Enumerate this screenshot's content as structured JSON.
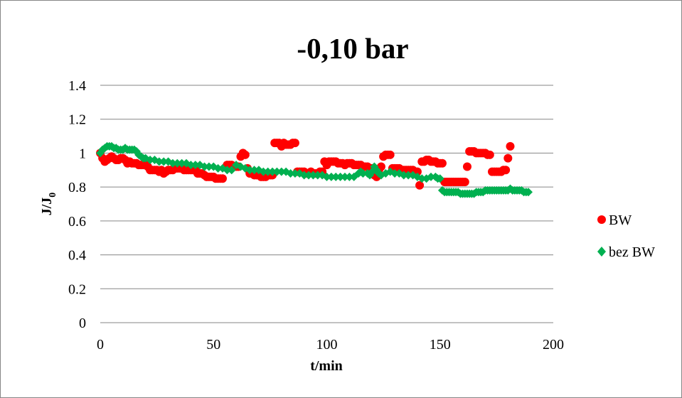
{
  "chart_data": {
    "type": "scatter",
    "title": "-0,10 bar",
    "xlabel": "t/min",
    "ylabel": {
      "main": "J/J",
      "sub": "0"
    },
    "xlim": [
      0,
      200
    ],
    "ylim": [
      0,
      1.4
    ],
    "x_ticks": [
      0,
      50,
      100,
      150,
      200
    ],
    "y_ticks": [
      0,
      0.2,
      0.4,
      0.6,
      0.8,
      1,
      1.2,
      1.4
    ],
    "x_tick_labels": [
      "0",
      "50",
      "100",
      "150",
      "200"
    ],
    "y_tick_labels": [
      "0",
      "0.2",
      "0.4",
      "0.6",
      "0.8",
      "1",
      "1.2",
      "1.4"
    ],
    "grid": "horizontal",
    "legend_position": "right",
    "series": [
      {
        "name": "BW",
        "marker": "circle",
        "color": "#FF0000",
        "points": [
          [
            0,
            1.0
          ],
          [
            1,
            0.97
          ],
          [
            2,
            0.95
          ],
          [
            3,
            0.96
          ],
          [
            4,
            0.97
          ],
          [
            5,
            0.98
          ],
          [
            6,
            0.97
          ],
          [
            7,
            0.96
          ],
          [
            8,
            0.96
          ],
          [
            9,
            0.97
          ],
          [
            10,
            0.97
          ],
          [
            11,
            0.96
          ],
          [
            12,
            0.94
          ],
          [
            13,
            0.95
          ],
          [
            14,
            0.94
          ],
          [
            15,
            0.94
          ],
          [
            16,
            0.94
          ],
          [
            17,
            0.93
          ],
          [
            18,
            0.93
          ],
          [
            19,
            0.93
          ],
          [
            20,
            0.93
          ],
          [
            21,
            0.92
          ],
          [
            22,
            0.9
          ],
          [
            23,
            0.9
          ],
          [
            24,
            0.9
          ],
          [
            25,
            0.9
          ],
          [
            26,
            0.89
          ],
          [
            27,
            0.9
          ],
          [
            28,
            0.88
          ],
          [
            29,
            0.89
          ],
          [
            30,
            0.9
          ],
          [
            31,
            0.9
          ],
          [
            32,
            0.9
          ],
          [
            33,
            0.91
          ],
          [
            34,
            0.91
          ],
          [
            35,
            0.91
          ],
          [
            36,
            0.91
          ],
          [
            37,
            0.9
          ],
          [
            38,
            0.9
          ],
          [
            39,
            0.9
          ],
          [
            40,
            0.9
          ],
          [
            41,
            0.9
          ],
          [
            42,
            0.9
          ],
          [
            43,
            0.88
          ],
          [
            44,
            0.88
          ],
          [
            45,
            0.88
          ],
          [
            46,
            0.87
          ],
          [
            47,
            0.86
          ],
          [
            48,
            0.86
          ],
          [
            49,
            0.86
          ],
          [
            50,
            0.86
          ],
          [
            51,
            0.85
          ],
          [
            52,
            0.85
          ],
          [
            53,
            0.85
          ],
          [
            54,
            0.85
          ],
          [
            56,
            0.93
          ],
          [
            57,
            0.93
          ],
          [
            58,
            0.93
          ],
          [
            59,
            0.92
          ],
          [
            60,
            0.92
          ],
          [
            61,
            0.92
          ],
          [
            62,
            0.98
          ],
          [
            63,
            1.0
          ],
          [
            64,
            0.99
          ],
          [
            65,
            0.91
          ],
          [
            66,
            0.88
          ],
          [
            67,
            0.88
          ],
          [
            68,
            0.87
          ],
          [
            69,
            0.87
          ],
          [
            70,
            0.87
          ],
          [
            71,
            0.86
          ],
          [
            72,
            0.86
          ],
          [
            73,
            0.86
          ],
          [
            74,
            0.87
          ],
          [
            75,
            0.87
          ],
          [
            76,
            0.87
          ],
          [
            77,
            1.06
          ],
          [
            78,
            1.06
          ],
          [
            79,
            1.06
          ],
          [
            80,
            1.04
          ],
          [
            81,
            1.06
          ],
          [
            82,
            1.05
          ],
          [
            83,
            1.05
          ],
          [
            84,
            1.05
          ],
          [
            85,
            1.06
          ],
          [
            86,
            1.06
          ],
          [
            87,
            0.89
          ],
          [
            88,
            0.89
          ],
          [
            89,
            0.89
          ],
          [
            90,
            0.89
          ],
          [
            91,
            0.88
          ],
          [
            92,
            0.88
          ],
          [
            93,
            0.89
          ],
          [
            94,
            0.88
          ],
          [
            95,
            0.88
          ],
          [
            96,
            0.88
          ],
          [
            97,
            0.89
          ],
          [
            98,
            0.89
          ],
          [
            99,
            0.95
          ],
          [
            100,
            0.93
          ],
          [
            101,
            0.95
          ],
          [
            102,
            0.95
          ],
          [
            103,
            0.95
          ],
          [
            104,
            0.95
          ],
          [
            105,
            0.94
          ],
          [
            106,
            0.94
          ],
          [
            107,
            0.94
          ],
          [
            108,
            0.93
          ],
          [
            109,
            0.94
          ],
          [
            110,
            0.94
          ],
          [
            111,
            0.94
          ],
          [
            112,
            0.93
          ],
          [
            113,
            0.93
          ],
          [
            114,
            0.93
          ],
          [
            115,
            0.93
          ],
          [
            116,
            0.92
          ],
          [
            117,
            0.92
          ],
          [
            118,
            0.92
          ],
          [
            119,
            0.91
          ],
          [
            120,
            0.91
          ],
          [
            121,
            0.87
          ],
          [
            122,
            0.86
          ],
          [
            123,
            0.9
          ],
          [
            124,
            0.92
          ],
          [
            125,
            0.98
          ],
          [
            126,
            0.99
          ],
          [
            127,
            0.99
          ],
          [
            128,
            0.99
          ],
          [
            129,
            0.91
          ],
          [
            130,
            0.91
          ],
          [
            131,
            0.91
          ],
          [
            132,
            0.91
          ],
          [
            133,
            0.9
          ],
          [
            134,
            0.9
          ],
          [
            135,
            0.9
          ],
          [
            136,
            0.9
          ],
          [
            137,
            0.9
          ],
          [
            138,
            0.9
          ],
          [
            139,
            0.89
          ],
          [
            140,
            0.89
          ],
          [
            141,
            0.81
          ],
          [
            142,
            0.95
          ],
          [
            143,
            0.95
          ],
          [
            144,
            0.96
          ],
          [
            145,
            0.96
          ],
          [
            146,
            0.95
          ],
          [
            147,
            0.95
          ],
          [
            148,
            0.95
          ],
          [
            149,
            0.94
          ],
          [
            150,
            0.94
          ],
          [
            151,
            0.94
          ],
          [
            152,
            0.83
          ],
          [
            153,
            0.83
          ],
          [
            154,
            0.83
          ],
          [
            155,
            0.83
          ],
          [
            156,
            0.83
          ],
          [
            157,
            0.83
          ],
          [
            158,
            0.83
          ],
          [
            159,
            0.83
          ],
          [
            160,
            0.83
          ],
          [
            161,
            0.83
          ],
          [
            162,
            0.92
          ],
          [
            163,
            1.01
          ],
          [
            164,
            1.01
          ],
          [
            165,
            1.01
          ],
          [
            166,
            1.0
          ],
          [
            167,
            1.0
          ],
          [
            168,
            1.0
          ],
          [
            169,
            1.0
          ],
          [
            170,
            1.0
          ],
          [
            171,
            0.99
          ],
          [
            172,
            0.99
          ],
          [
            173,
            0.89
          ],
          [
            174,
            0.89
          ],
          [
            175,
            0.89
          ],
          [
            176,
            0.89
          ],
          [
            177,
            0.89
          ],
          [
            178,
            0.9
          ],
          [
            179,
            0.9
          ],
          [
            180,
            0.97
          ],
          [
            181,
            1.04
          ]
        ]
      },
      {
        "name": "bez BW",
        "marker": "diamond",
        "color": "#00B050",
        "points": [
          [
            0,
            1.0
          ],
          [
            1,
            1.02
          ],
          [
            2,
            1.03
          ],
          [
            3,
            1.04
          ],
          [
            4,
            1.04
          ],
          [
            5,
            1.04
          ],
          [
            6,
            1.03
          ],
          [
            7,
            1.03
          ],
          [
            8,
            1.02
          ],
          [
            9,
            1.02
          ],
          [
            10,
            1.02
          ],
          [
            11,
            1.03
          ],
          [
            12,
            1.02
          ],
          [
            13,
            1.02
          ],
          [
            14,
            1.02
          ],
          [
            15,
            1.02
          ],
          [
            16,
            1.01
          ],
          [
            17,
            0.99
          ],
          [
            18,
            0.98
          ],
          [
            19,
            0.97
          ],
          [
            20,
            0.97
          ],
          [
            22,
            0.96
          ],
          [
            24,
            0.96
          ],
          [
            26,
            0.95
          ],
          [
            28,
            0.95
          ],
          [
            30,
            0.95
          ],
          [
            32,
            0.94
          ],
          [
            34,
            0.94
          ],
          [
            36,
            0.94
          ],
          [
            38,
            0.94
          ],
          [
            40,
            0.93
          ],
          [
            42,
            0.93
          ],
          [
            44,
            0.93
          ],
          [
            46,
            0.92
          ],
          [
            48,
            0.92
          ],
          [
            50,
            0.92
          ],
          [
            52,
            0.91
          ],
          [
            54,
            0.91
          ],
          [
            56,
            0.9
          ],
          [
            58,
            0.9
          ],
          [
            60,
            0.93
          ],
          [
            62,
            0.92
          ],
          [
            64,
            0.91
          ],
          [
            66,
            0.9
          ],
          [
            68,
            0.9
          ],
          [
            70,
            0.9
          ],
          [
            72,
            0.89
          ],
          [
            74,
            0.89
          ],
          [
            76,
            0.89
          ],
          [
            78,
            0.89
          ],
          [
            80,
            0.89
          ],
          [
            82,
            0.89
          ],
          [
            84,
            0.88
          ],
          [
            86,
            0.88
          ],
          [
            88,
            0.88
          ],
          [
            90,
            0.87
          ],
          [
            92,
            0.87
          ],
          [
            94,
            0.87
          ],
          [
            96,
            0.87
          ],
          [
            98,
            0.87
          ],
          [
            100,
            0.86
          ],
          [
            102,
            0.86
          ],
          [
            104,
            0.86
          ],
          [
            106,
            0.86
          ],
          [
            108,
            0.86
          ],
          [
            110,
            0.86
          ],
          [
            112,
            0.86
          ],
          [
            114,
            0.88
          ],
          [
            115,
            0.89
          ],
          [
            116,
            0.88
          ],
          [
            118,
            0.88
          ],
          [
            119,
            0.87
          ],
          [
            120,
            0.89
          ],
          [
            121,
            0.92
          ],
          [
            122,
            0.9
          ],
          [
            123,
            0.88
          ],
          [
            124,
            0.87
          ],
          [
            126,
            0.88
          ],
          [
            128,
            0.89
          ],
          [
            130,
            0.88
          ],
          [
            132,
            0.88
          ],
          [
            134,
            0.87
          ],
          [
            136,
            0.87
          ],
          [
            138,
            0.87
          ],
          [
            140,
            0.86
          ],
          [
            142,
            0.85
          ],
          [
            144,
            0.85
          ],
          [
            146,
            0.86
          ],
          [
            148,
            0.86
          ],
          [
            149,
            0.85
          ],
          [
            150,
            0.85
          ],
          [
            151,
            0.78
          ],
          [
            152,
            0.77
          ],
          [
            153,
            0.77
          ],
          [
            154,
            0.77
          ],
          [
            155,
            0.77
          ],
          [
            156,
            0.77
          ],
          [
            157,
            0.77
          ],
          [
            158,
            0.77
          ],
          [
            159,
            0.76
          ],
          [
            160,
            0.76
          ],
          [
            161,
            0.76
          ],
          [
            162,
            0.76
          ],
          [
            163,
            0.76
          ],
          [
            164,
            0.76
          ],
          [
            165,
            0.76
          ],
          [
            166,
            0.77
          ],
          [
            167,
            0.77
          ],
          [
            168,
            0.77
          ],
          [
            169,
            0.77
          ],
          [
            170,
            0.78
          ],
          [
            171,
            0.78
          ],
          [
            172,
            0.78
          ],
          [
            173,
            0.78
          ],
          [
            174,
            0.78
          ],
          [
            175,
            0.78
          ],
          [
            176,
            0.78
          ],
          [
            177,
            0.78
          ],
          [
            178,
            0.78
          ],
          [
            179,
            0.78
          ],
          [
            180,
            0.78
          ],
          [
            181,
            0.79
          ],
          [
            182,
            0.78
          ],
          [
            183,
            0.78
          ],
          [
            184,
            0.78
          ],
          [
            185,
            0.78
          ],
          [
            186,
            0.78
          ],
          [
            187,
            0.77
          ],
          [
            188,
            0.77
          ],
          [
            189,
            0.77
          ]
        ]
      }
    ]
  }
}
